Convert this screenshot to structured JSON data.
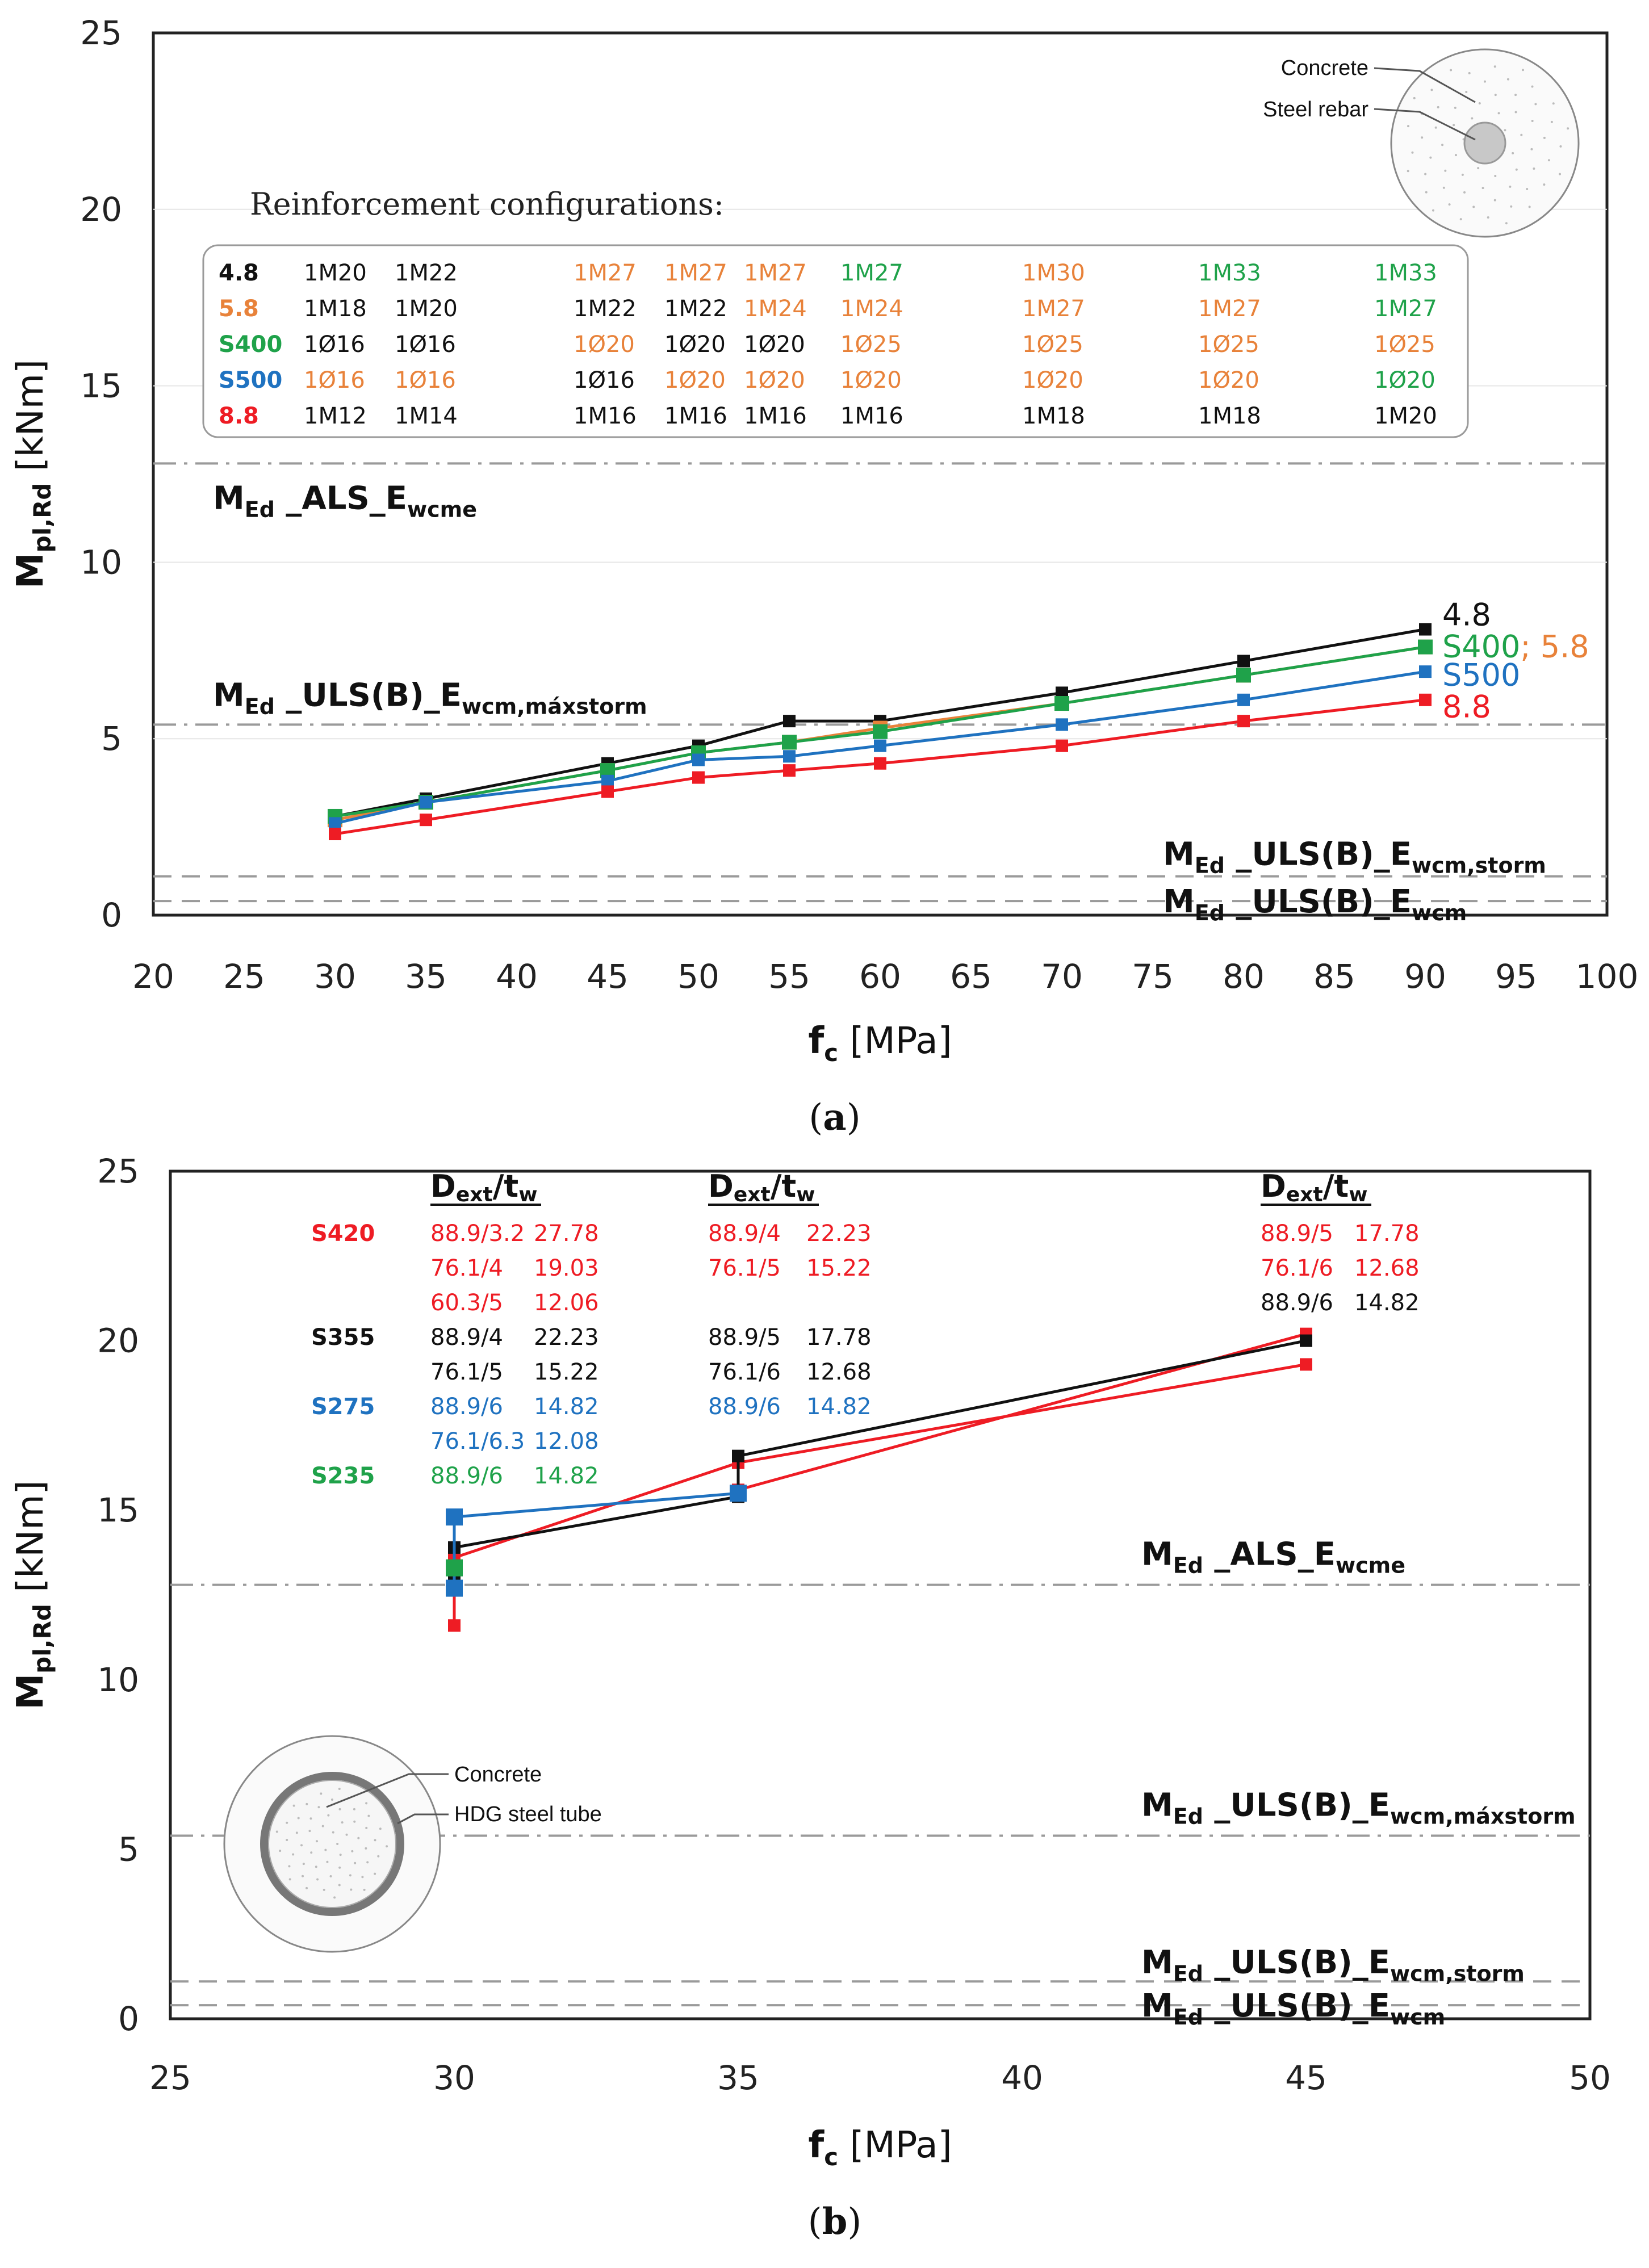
{
  "colors": {
    "s48": "#111111",
    "s58": "#E8823A",
    "s400": "#1FA24A",
    "s500": "#1F72C0",
    "s88": "#EE1C24",
    "ref": "#9A9A9A"
  },
  "chart_data": [
    {
      "type": "line",
      "panel": "(a)",
      "panel_letter": "a",
      "xlabel_main": "f",
      "xlabel_sub": "c",
      "xlabel_unit": " [MPa]",
      "ylabel_main": "M",
      "ylabel_sub": "pl,Rd",
      "ylabel_unit": " [kNm]",
      "xlim": [
        20,
        100
      ],
      "ylim": [
        0,
        25
      ],
      "xticks": [
        20,
        25,
        30,
        35,
        40,
        45,
        50,
        55,
        60,
        65,
        70,
        75,
        80,
        85,
        90,
        95,
        100
      ],
      "yticks": [
        0,
        5,
        10,
        15,
        20,
        25
      ],
      "x": [
        30,
        35,
        45,
        50,
        55,
        60,
        70,
        80,
        90
      ],
      "series": [
        {
          "name": "4.8",
          "color": "s48",
          "values": [
            2.8,
            3.3,
            4.3,
            4.8,
            5.5,
            5.5,
            6.3,
            7.2,
            8.1
          ]
        },
        {
          "name": "5.8",
          "color": "s58",
          "values": [
            2.7,
            3.2,
            4.1,
            4.6,
            4.9,
            5.3,
            6.0,
            6.8,
            7.6
          ]
        },
        {
          "name": "S400",
          "color": "s400",
          "values": [
            2.8,
            3.2,
            4.1,
            4.6,
            4.9,
            5.2,
            6.0,
            6.8,
            7.6
          ]
        },
        {
          "name": "S500",
          "color": "s500",
          "values": [
            2.6,
            3.2,
            3.8,
            4.4,
            4.5,
            4.8,
            5.4,
            6.1,
            6.9
          ]
        },
        {
          "name": "8.8",
          "color": "s88",
          "values": [
            2.3,
            2.7,
            3.5,
            3.9,
            4.1,
            4.3,
            4.8,
            5.5,
            6.1
          ]
        }
      ],
      "end_labels": [
        {
          "parts": [
            {
              "text": "4.8",
              "color": "s48"
            }
          ],
          "y": 8.5
        },
        {
          "parts": [
            {
              "text": "S400",
              "color": "s400"
            },
            {
              "text": "; 5.8",
              "color": "s58"
            }
          ],
          "y": 7.6
        },
        {
          "parts": [
            {
              "text": "S500",
              "color": "s500"
            }
          ],
          "y": 6.8
        },
        {
          "parts": [
            {
              "text": "8.8",
              "color": "s88"
            }
          ],
          "y": 5.9
        }
      ],
      "references": [
        {
          "main": "M",
          "sub1": "Ed",
          "mid": " _ALS_E",
          "sub2": "wcme",
          "y": 12.8,
          "style": "dashdot"
        },
        {
          "main": "M",
          "sub1": "Ed",
          "mid": " _ULS(B)_E",
          "sub2": "wcm,máxstorm",
          "y": 5.4,
          "style": "dashdot"
        },
        {
          "main": "M",
          "sub1": "Ed",
          "mid": " _ULS(B)_E",
          "sub2": "wcm,storm",
          "y": 1.1,
          "style": "dash"
        },
        {
          "main": "M",
          "sub1": "Ed",
          "mid": " _ULS(B)_E",
          "sub2": "wcm",
          "y": 0.4,
          "style": "dash"
        }
      ],
      "table_title": "Reinforcement configurations:",
      "table_rows": [
        {
          "grade": "4.8",
          "grade_color": "s48",
          "cells": [
            {
              "t": "1M20",
              "c": "s48"
            },
            {
              "t": "1M22",
              "c": "s48"
            },
            {
              "t": "1M27",
              "c": "s58"
            },
            {
              "t": "1M27",
              "c": "s58"
            },
            {
              "t": "1M27",
              "c": "s58"
            },
            {
              "t": "1M27",
              "c": "s400"
            },
            {
              "t": "1M30",
              "c": "s58"
            },
            {
              "t": "1M33",
              "c": "s400"
            },
            {
              "t": "1M33",
              "c": "s400"
            }
          ]
        },
        {
          "grade": "5.8",
          "grade_color": "s58",
          "cells": [
            {
              "t": "1M18",
              "c": "s48"
            },
            {
              "t": "1M20",
              "c": "s48"
            },
            {
              "t": "1M22",
              "c": "s48"
            },
            {
              "t": "1M22",
              "c": "s48"
            },
            {
              "t": "1M24",
              "c": "s58"
            },
            {
              "t": "1M24",
              "c": "s58"
            },
            {
              "t": "1M27",
              "c": "s58"
            },
            {
              "t": "1M27",
              "c": "s58"
            },
            {
              "t": "1M27",
              "c": "s400"
            }
          ]
        },
        {
          "grade": "S400",
          "grade_color": "s400",
          "cells": [
            {
              "t": "1Ø16",
              "c": "s48"
            },
            {
              "t": "1Ø16",
              "c": "s48"
            },
            {
              "t": "1Ø20",
              "c": "s58"
            },
            {
              "t": "1Ø20",
              "c": "s48"
            },
            {
              "t": "1Ø20",
              "c": "s48"
            },
            {
              "t": "1Ø25",
              "c": "s58"
            },
            {
              "t": "1Ø25",
              "c": "s58"
            },
            {
              "t": "1Ø25",
              "c": "s58"
            },
            {
              "t": "1Ø25",
              "c": "s58"
            }
          ]
        },
        {
          "grade": "S500",
          "grade_color": "s500",
          "cells": [
            {
              "t": "1Ø16",
              "c": "s58"
            },
            {
              "t": "1Ø16",
              "c": "s58"
            },
            {
              "t": "1Ø16",
              "c": "s48"
            },
            {
              "t": "1Ø20",
              "c": "s58"
            },
            {
              "t": "1Ø20",
              "c": "s58"
            },
            {
              "t": "1Ø20",
              "c": "s58"
            },
            {
              "t": "1Ø20",
              "c": "s58"
            },
            {
              "t": "1Ø20",
              "c": "s58"
            },
            {
              "t": "1Ø20",
              "c": "s400"
            }
          ]
        },
        {
          "grade": "8.8",
          "grade_color": "s88",
          "cells": [
            {
              "t": "1M12",
              "c": "s48"
            },
            {
              "t": "1M14",
              "c": "s48"
            },
            {
              "t": "1M16",
              "c": "s48"
            },
            {
              "t": "1M16",
              "c": "s48"
            },
            {
              "t": "1M16",
              "c": "s48"
            },
            {
              "t": "1M16",
              "c": "s48"
            },
            {
              "t": "1M18",
              "c": "s48"
            },
            {
              "t": "1M18",
              "c": "s48"
            },
            {
              "t": "1M20",
              "c": "s48"
            }
          ]
        }
      ],
      "inset_labels": [
        "Concrete",
        "Steel rebar"
      ]
    },
    {
      "type": "line",
      "panel": "(b)",
      "panel_letter": "b",
      "xlabel_main": "f",
      "xlabel_sub": "c",
      "xlabel_unit": " [MPa]",
      "ylabel_main": "M",
      "ylabel_sub": "pl,Rd",
      "ylabel_unit": " [kNm]",
      "xlim": [
        25,
        50
      ],
      "ylim": [
        0,
        25
      ],
      "xticks": [
        25,
        30,
        35,
        40,
        45,
        50
      ],
      "yticks": [
        0,
        5,
        10,
        15,
        20,
        25
      ],
      "series": [
        {
          "name": "S420",
          "color": "s88",
          "x": [
            30,
            30,
            30,
            35,
            45
          ],
          "values": [
            11.6,
            13.4,
            13.6,
            16.4,
            19.3
          ]
        },
        {
          "name": "S420",
          "color": "s88",
          "x": [
            35,
            45
          ],
          "values": [
            15.6,
            20.2
          ]
        },
        {
          "name": "S355",
          "color": "s48",
          "x": [
            30,
            30,
            35,
            35,
            45
          ],
          "values": [
            13.1,
            13.9,
            15.4,
            16.6,
            20.0
          ]
        },
        {
          "name": "S275",
          "color": "s500",
          "x": [
            30,
            30,
            35
          ],
          "values": [
            12.7,
            14.8,
            15.5
          ]
        },
        {
          "name": "S235",
          "color": "s400",
          "x": [
            30
          ],
          "values": [
            13.3
          ]
        }
      ],
      "references": [
        {
          "main": "M",
          "sub1": "Ed",
          "mid": " _ALS_E",
          "sub2": "wcme",
          "y": 12.8,
          "style": "dashdot"
        },
        {
          "main": "M",
          "sub1": "Ed",
          "mid": " _ULS(B)_E",
          "sub2": "wcm,máxstorm",
          "y": 5.4,
          "style": "dashdot"
        },
        {
          "main": "M",
          "sub1": "Ed",
          "mid": " _ULS(B)_E",
          "sub2": "wcm,storm",
          "y": 1.1,
          "style": "dash"
        },
        {
          "main": "M",
          "sub1": "Ed",
          "mid": " _ULS(B)_E",
          "sub2": "wcm",
          "y": 0.4,
          "style": "dash"
        }
      ],
      "dt_header": {
        "main": "D",
        "sub1": "ext",
        "slash": "/t",
        "sub2": "w"
      },
      "dt_groups": [
        {
          "rows": [
            {
              "grade": "S420",
              "grade_color": "s88",
              "a": "88.9/3.2",
              "b": "27.78",
              "c": "s88"
            },
            {
              "grade": "",
              "grade_color": "s88",
              "a": "76.1/4",
              "b": "19.03",
              "c": "s88"
            },
            {
              "grade": "",
              "grade_color": "s88",
              "a": "60.3/5",
              "b": "12.06",
              "c": "s88"
            },
            {
              "grade": "S355",
              "grade_color": "s48",
              "a": "88.9/4",
              "b": "22.23",
              "c": "s48"
            },
            {
              "grade": "",
              "grade_color": "s48",
              "a": "76.1/5",
              "b": "15.22",
              "c": "s48"
            },
            {
              "grade": "S275",
              "grade_color": "s500",
              "a": "88.9/6",
              "b": "14.82",
              "c": "s500"
            },
            {
              "grade": "",
              "grade_color": "s500",
              "a": "76.1/6.3",
              "b": "12.08",
              "c": "s500"
            },
            {
              "grade": "S235",
              "grade_color": "s400",
              "a": "88.9/6",
              "b": "14.82",
              "c": "s400"
            }
          ]
        },
        {
          "rows": [
            {
              "a": "88.9/4",
              "b": "22.23",
              "c": "s88"
            },
            {
              "a": "76.1/5",
              "b": "15.22",
              "c": "s88"
            },
            {
              "a": "",
              "b": "",
              "c": "s88"
            },
            {
              "a": "88.9/5",
              "b": "17.78",
              "c": "s48"
            },
            {
              "a": "76.1/6",
              "b": "12.68",
              "c": "s48"
            },
            {
              "a": "88.9/6",
              "b": "14.82",
              "c": "s500"
            }
          ]
        },
        {
          "rows": [
            {
              "a": "88.9/5",
              "b": "17.78",
              "c": "s88"
            },
            {
              "a": "76.1/6",
              "b": "12.68",
              "c": "s88"
            },
            {
              "a": "88.9/6",
              "b": "14.82",
              "c": "s48"
            }
          ]
        }
      ],
      "inset_labels": [
        "Concrete",
        "HDG steel tube"
      ]
    }
  ]
}
